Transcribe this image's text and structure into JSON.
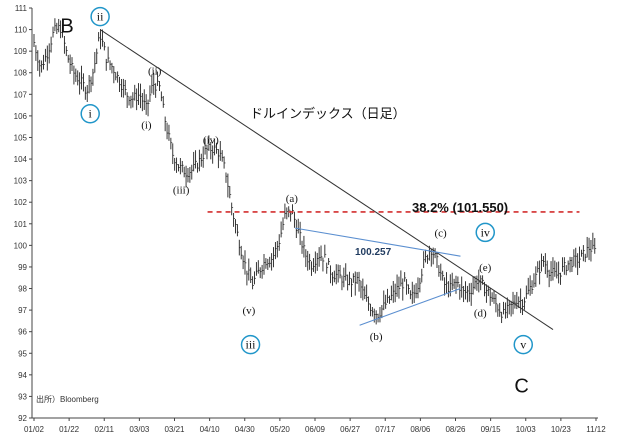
{
  "chart_data": {
    "type": "ohlc",
    "title": "ドルインデックス（日足）",
    "source": "出所）Bloomberg",
    "ylim": [
      92,
      111
    ],
    "yticks": [
      92,
      93,
      94,
      95,
      96,
      97,
      98,
      99,
      100,
      101,
      102,
      103,
      104,
      105,
      106,
      107,
      108,
      109,
      110,
      111
    ],
    "xticks": [
      "01/02",
      "01/22",
      "02/11",
      "03/03",
      "03/21",
      "04/10",
      "04/30",
      "05/20",
      "06/09",
      "06/27",
      "07/17",
      "08/06",
      "08/26",
      "09/15",
      "10/03",
      "10/23",
      "11/12"
    ],
    "close_path": [
      [
        0,
        109.4
      ],
      [
        4,
        108.2
      ],
      [
        8,
        108.9
      ],
      [
        12,
        109.9
      ],
      [
        16,
        110.1
      ],
      [
        20,
        108.8
      ],
      [
        24,
        108.0
      ],
      [
        28,
        107.6
      ],
      [
        32,
        107.2
      ],
      [
        36,
        108.1
      ],
      [
        40,
        109.8
      ],
      [
        44,
        108.6
      ],
      [
        48,
        108.2
      ],
      [
        52,
        107.6
      ],
      [
        56,
        107.0
      ],
      [
        60,
        106.8
      ],
      [
        64,
        107.0
      ],
      [
        68,
        106.3
      ],
      [
        72,
        107.5
      ],
      [
        76,
        107.3
      ],
      [
        80,
        105.5
      ],
      [
        84,
        104.2
      ],
      [
        88,
        103.6
      ],
      [
        92,
        103.4
      ],
      [
        96,
        103.5
      ],
      [
        100,
        103.9
      ],
      [
        104,
        104.4
      ],
      [
        108,
        104.5
      ],
      [
        112,
        104.3
      ],
      [
        116,
        103.4
      ],
      [
        120,
        101.6
      ],
      [
        124,
        100.2
      ],
      [
        128,
        99.0
      ],
      [
        132,
        98.2
      ],
      [
        136,
        98.8
      ],
      [
        140,
        99.3
      ],
      [
        144,
        99.4
      ],
      [
        148,
        100.1
      ],
      [
        152,
        101.4
      ],
      [
        156,
        101.6
      ],
      [
        160,
        100.6
      ],
      [
        164,
        99.6
      ],
      [
        168,
        99.1
      ],
      [
        172,
        99.6
      ],
      [
        176,
        99.4
      ],
      [
        180,
        98.7
      ],
      [
        184,
        98.6
      ],
      [
        188,
        98.4
      ],
      [
        192,
        98.3
      ],
      [
        196,
        98.4
      ],
      [
        200,
        97.6
      ],
      [
        204,
        97.1
      ],
      [
        208,
        96.8
      ],
      [
        212,
        97.2
      ],
      [
        216,
        97.6
      ],
      [
        220,
        98.0
      ],
      [
        224,
        98.3
      ],
      [
        228,
        97.5
      ],
      [
        232,
        98.1
      ],
      [
        236,
        99.2
      ],
      [
        240,
        99.9
      ],
      [
        244,
        99.2
      ],
      [
        248,
        98.2
      ],
      [
        252,
        98.0
      ],
      [
        256,
        98.3
      ],
      [
        260,
        97.8
      ],
      [
        264,
        97.9
      ],
      [
        268,
        98.4
      ],
      [
        272,
        98.1
      ],
      [
        276,
        97.7
      ],
      [
        280,
        97.2
      ],
      [
        284,
        96.8
      ],
      [
        288,
        97.1
      ],
      [
        292,
        97.5
      ],
      [
        296,
        97.4
      ],
      [
        300,
        98.0
      ],
      [
        304,
        98.6
      ],
      [
        308,
        99.3
      ],
      [
        312,
        98.8
      ],
      [
        316,
        98.6
      ],
      [
        320,
        98.9
      ],
      [
        324,
        99.2
      ],
      [
        328,
        99.3
      ],
      [
        332,
        99.5
      ],
      [
        336,
        99.9
      ],
      [
        340,
        99.7
      ]
    ],
    "resistance_level": {
      "label": "38.2% (101.550)",
      "value": 101.55,
      "from_x": 105,
      "to_x": 330
    },
    "level_annotation": {
      "label": "100.257",
      "value": 100.257
    },
    "trendlines": [
      {
        "name": "main-trendline",
        "from": [
          40,
          110.0
        ],
        "to": [
          314,
          96.1
        ]
      },
      {
        "name": "triangle-upper",
        "from": [
          158,
          100.8
        ],
        "to": [
          258,
          99.5
        ]
      },
      {
        "name": "triangle-lower",
        "from": [
          197,
          96.3
        ],
        "to": [
          258,
          98.0
        ]
      }
    ],
    "wave_labels": [
      {
        "text": "B",
        "kind": "big",
        "x": 20,
        "y": 110.2
      },
      {
        "text": "ii",
        "kind": "circle",
        "x": 40,
        "y": 110.6
      },
      {
        "text": "i",
        "kind": "circle",
        "x": 34,
        "y": 106.1
      },
      {
        "text": "(ii)",
        "kind": "paren",
        "x": 73,
        "y": 108.1
      },
      {
        "text": "(i)",
        "kind": "paren",
        "x": 68,
        "y": 105.6
      },
      {
        "text": "(iv)",
        "kind": "paren",
        "x": 107,
        "y": 104.9
      },
      {
        "text": "(iii)",
        "kind": "paren",
        "x": 89,
        "y": 102.6
      },
      {
        "text": "(v)",
        "kind": "paren",
        "x": 130,
        "y": 97.0
      },
      {
        "text": "iii",
        "kind": "circle",
        "x": 131,
        "y": 95.4
      },
      {
        "text": "(a)",
        "kind": "paren",
        "x": 156,
        "y": 102.2
      },
      {
        "text": "(b)",
        "kind": "paren",
        "x": 207,
        "y": 95.8
      },
      {
        "text": "(c)",
        "kind": "paren",
        "x": 246,
        "y": 100.6
      },
      {
        "text": "iv",
        "kind": "circle",
        "x": 273,
        "y": 100.6
      },
      {
        "text": "(e)",
        "kind": "paren",
        "x": 273,
        "y": 99.0
      },
      {
        "text": "(d)",
        "kind": "paren",
        "x": 270,
        "y": 96.9
      },
      {
        "text": "v",
        "kind": "circle",
        "x": 296,
        "y": 95.4
      },
      {
        "text": "C",
        "kind": "big",
        "x": 295,
        "y": 93.5
      }
    ]
  },
  "colors": {
    "price": "#222222",
    "axis": "#444444",
    "trendline": "#333333",
    "triangle": "#5b8fd0",
    "resistance": "#d32f2f",
    "circle": "#2196c9"
  }
}
